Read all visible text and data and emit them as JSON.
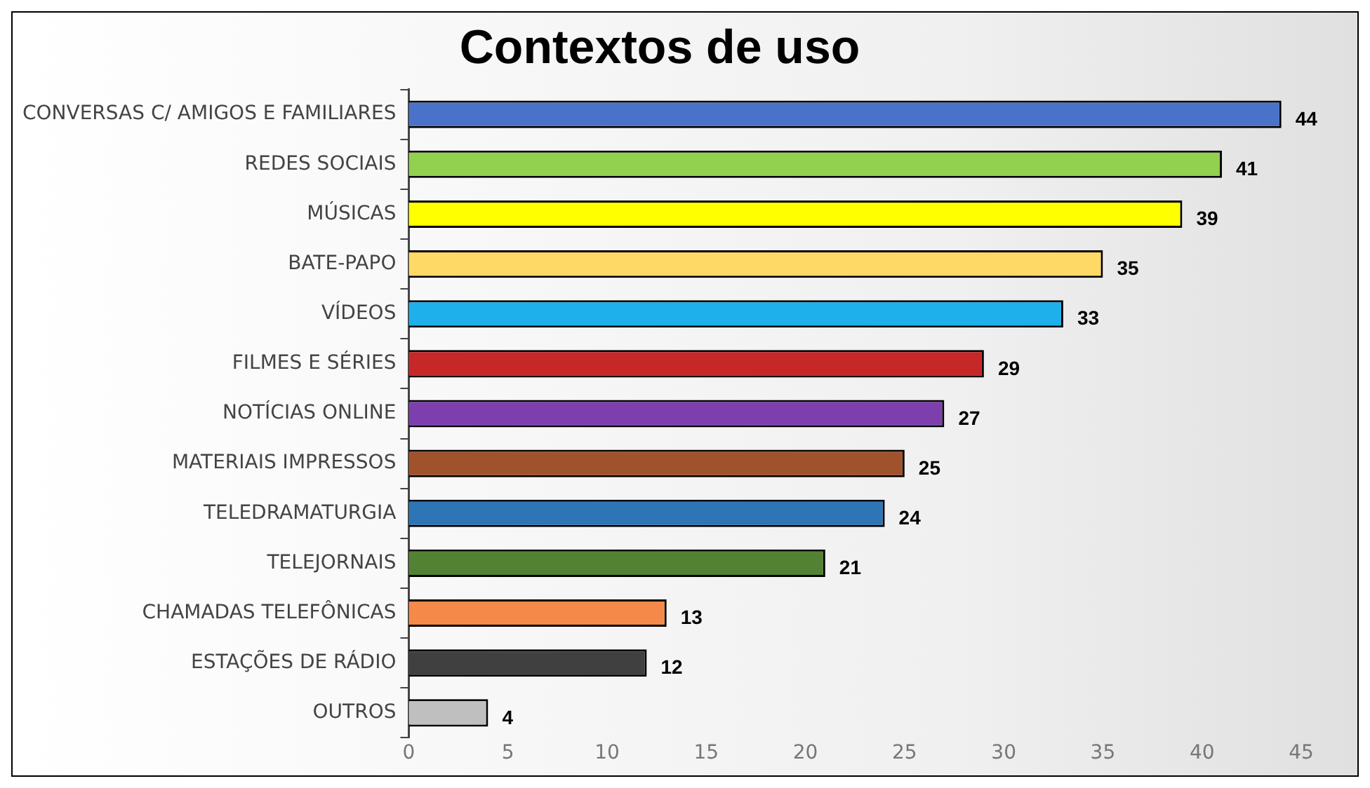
{
  "chart_data": {
    "type": "bar",
    "title": "Contextos de uso",
    "orientation": "horizontal",
    "categories": [
      "CONVERSAS C/ AMIGOS E FAMILIARES",
      "REDES SOCIAIS",
      "MÚSICAS",
      "BATE-PAPO",
      "VÍDEOS",
      "FILMES E SÉRIES",
      "NOTÍCIAS ONLINE",
      "MATERIAIS IMPRESSOS",
      "TELEDRAMATURGIA",
      "TELEJORNAIS",
      "CHAMADAS TELEFÔNICAS",
      "ESTAÇÕES DE RÁDIO",
      "OUTROS"
    ],
    "values": [
      44,
      41,
      39,
      35,
      33,
      29,
      27,
      25,
      24,
      21,
      13,
      12,
      4
    ],
    "colors": [
      "#4a72c8",
      "#92d050",
      "#ffff00",
      "#ffd966",
      "#1eb0ea",
      "#c62828",
      "#7e3fae",
      "#a0522d",
      "#2e75b6",
      "#548235",
      "#f4894a",
      "#404040",
      "#bfbfbf"
    ],
    "xlim": [
      0,
      45
    ],
    "xticks": [
      0,
      5,
      10,
      15,
      20,
      25,
      30,
      35,
      40,
      45
    ],
    "grid": false,
    "legend": false,
    "data_labels": true
  }
}
